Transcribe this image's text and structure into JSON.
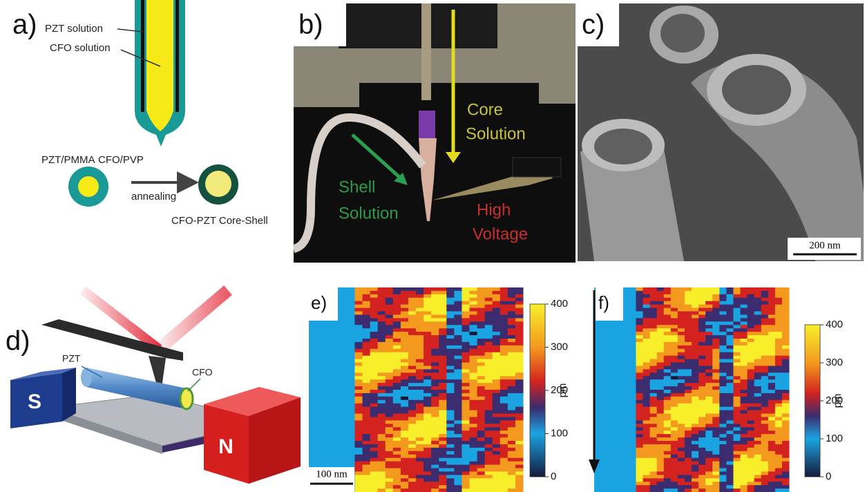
{
  "panels": {
    "a": {
      "label": "a)",
      "pzt_solution": "PZT solution",
      "cfo_solution": "CFO solution",
      "pzt_pmma": "PZT/PMMA",
      "cfo_pvp": "CFO/PVP",
      "annealing": "annealing",
      "result": "CFO-PZT Core-Shell"
    },
    "b": {
      "label": "b)",
      "core": [
        "Core",
        "Solution"
      ],
      "shell": [
        "Shell",
        "Solution"
      ],
      "voltage": [
        "High",
        "Voltage"
      ]
    },
    "c": {
      "label": "c)",
      "scale": "200 nm"
    },
    "d": {
      "label": "d)",
      "pzt": "PZT",
      "cfo": "CFO",
      "south": "S",
      "north": "N"
    },
    "e": {
      "label": "e)",
      "scale": "100 nm",
      "colorbar": {
        "ticks": [
          0,
          100,
          200,
          300,
          400
        ],
        "unit": "pm"
      }
    },
    "f": {
      "label": "f)",
      "colorbar": {
        "ticks": [
          0,
          100,
          200,
          300,
          400
        ],
        "unit": "pm"
      }
    }
  }
}
